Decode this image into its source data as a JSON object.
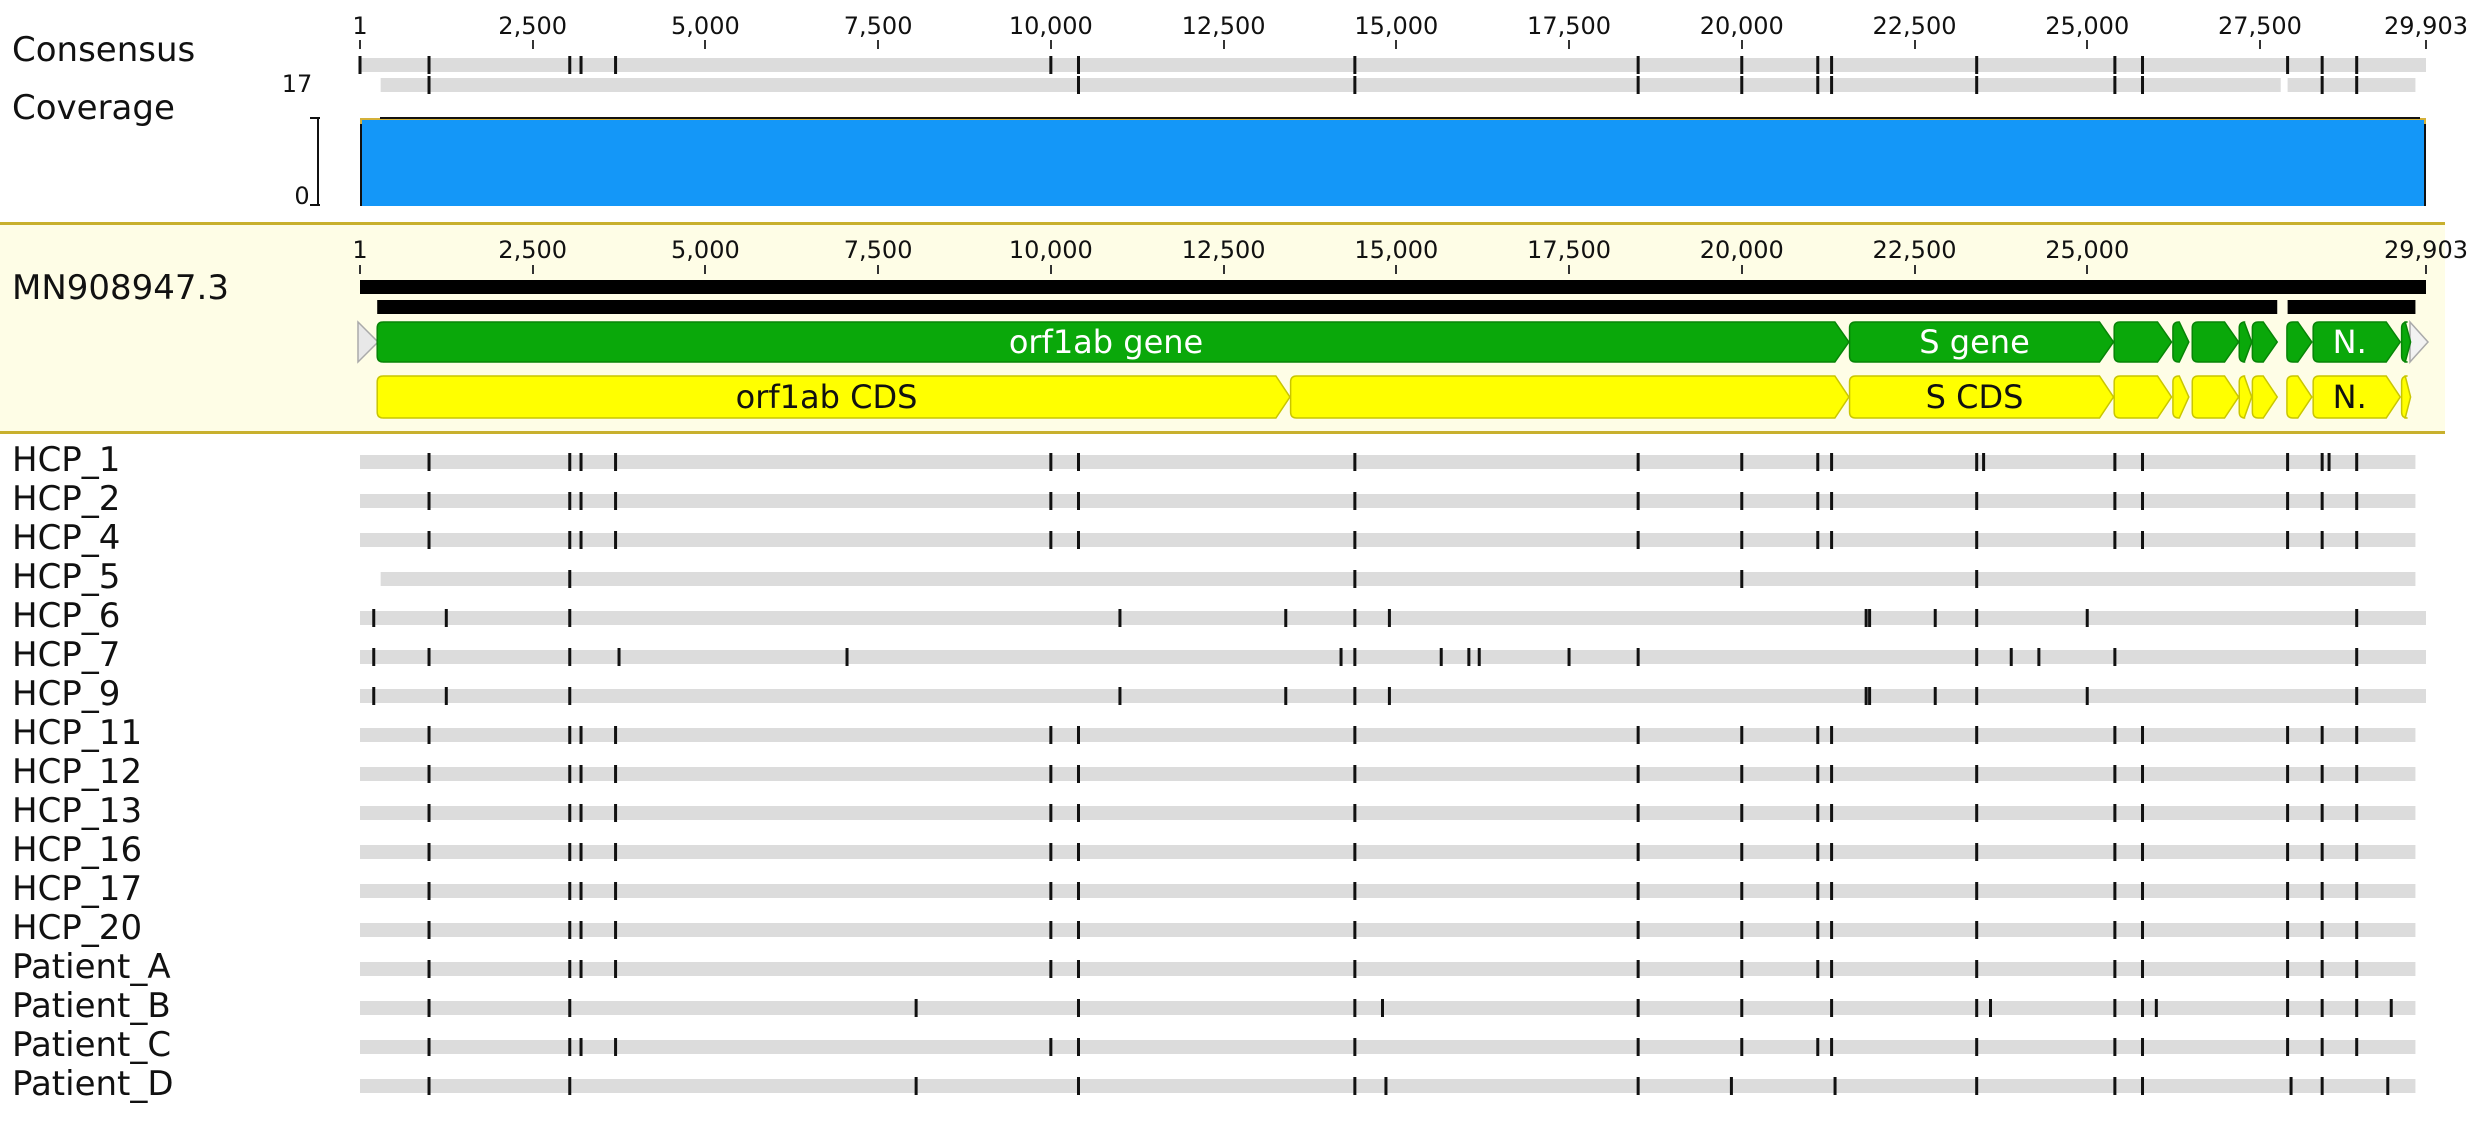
{
  "genome": {
    "min": 1,
    "max": 29903
  },
  "axis_ticks": [
    {
      "pos": 1,
      "label": "1"
    },
    {
      "pos": 2500,
      "label": "2,500"
    },
    {
      "pos": 5000,
      "label": "5,000"
    },
    {
      "pos": 7500,
      "label": "7,500"
    },
    {
      "pos": 10000,
      "label": "10,000"
    },
    {
      "pos": 12500,
      "label": "12,500"
    },
    {
      "pos": 15000,
      "label": "15,000"
    },
    {
      "pos": 17500,
      "label": "17,500"
    },
    {
      "pos": 20000,
      "label": "20,000"
    },
    {
      "pos": 22500,
      "label": "22,500"
    },
    {
      "pos": 25000,
      "label": "25,000"
    },
    {
      "pos": 27500,
      "label": "27,500"
    },
    {
      "pos": 29903,
      "label": "29,903"
    }
  ],
  "ref_ticks": [
    {
      "pos": 1,
      "label": "1"
    },
    {
      "pos": 2500,
      "label": "2,500"
    },
    {
      "pos": 5000,
      "label": "5,000"
    },
    {
      "pos": 7500,
      "label": "7,500"
    },
    {
      "pos": 10000,
      "label": "10,000"
    },
    {
      "pos": 12500,
      "label": "12,500"
    },
    {
      "pos": 15000,
      "label": "15,000"
    },
    {
      "pos": 17500,
      "label": "17,500"
    },
    {
      "pos": 20000,
      "label": "20,000"
    },
    {
      "pos": 22500,
      "label": "22,500"
    },
    {
      "pos": 25000,
      "label": "25,000"
    },
    {
      "pos": 29903,
      "label": "29,903"
    }
  ],
  "consensus": {
    "label": "Consensus",
    "variants": [
      1,
      1000,
      3037,
      3200,
      3700,
      10000,
      10400,
      14400,
      18500,
      20000,
      21100,
      21300,
      23400,
      25400,
      25800,
      27900,
      28400,
      28900
    ],
    "bar2": {
      "start": 300,
      "end": 29750,
      "gap_start": 27800,
      "gap_end": 27900
    },
    "bar2_variants": [
      1000,
      10400,
      14400,
      18500,
      20000,
      21100,
      21300,
      23400,
      25400,
      25800,
      28400,
      28900
    ]
  },
  "coverage": {
    "label": "Coverage",
    "max_label": "17",
    "min_label": "0",
    "color": "#1497f8",
    "edge_color": "#d4b13a"
  },
  "reference": {
    "label": "MN908947.3",
    "bar_black_1": {
      "start": 1,
      "end": 29903
    },
    "bar_black_2": {
      "start": 250,
      "end": 29750,
      "gap_start": 27750,
      "gap_end": 27900
    },
    "genes": [
      {
        "label": "orf1ab gene",
        "start": 250,
        "end": 21550
      },
      {
        "label": "S gene",
        "start": 21560,
        "end": 25380
      },
      {
        "label": "",
        "start": 25390,
        "end": 26220
      },
      {
        "label": "",
        "start": 26240,
        "end": 26470
      },
      {
        "label": "",
        "start": 26520,
        "end": 27190
      },
      {
        "label": "",
        "start": 27200,
        "end": 27380
      },
      {
        "label": "",
        "start": 27390,
        "end": 27750
      },
      {
        "label": "",
        "start": 27890,
        "end": 28250
      },
      {
        "label": "N.",
        "start": 28270,
        "end": 29530
      },
      {
        "label": "",
        "start": 29550,
        "end": 29680
      }
    ],
    "cds": [
      {
        "label": "orf1ab CDS",
        "start": 250,
        "end": 13460
      },
      {
        "label": "",
        "start": 13470,
        "end": 21550
      },
      {
        "label": "S CDS",
        "start": 21560,
        "end": 25380
      },
      {
        "label": "",
        "start": 25390,
        "end": 26220
      },
      {
        "label": "",
        "start": 26240,
        "end": 26470
      },
      {
        "label": "",
        "start": 26520,
        "end": 27190
      },
      {
        "label": "",
        "start": 27200,
        "end": 27380
      },
      {
        "label": "",
        "start": 27390,
        "end": 27750
      },
      {
        "label": "",
        "start": 27890,
        "end": 28250
      },
      {
        "label": "N.",
        "start": 28270,
        "end": 29530
      },
      {
        "label": "",
        "start": 29550,
        "end": 29680
      }
    ],
    "gene_color": "#0aa80a",
    "cds_color": "#ffff00"
  },
  "samples": [
    {
      "name": "HCP_1",
      "start": 1,
      "end": 29750,
      "variants": [
        1000,
        3037,
        3200,
        3700,
        10000,
        10400,
        14400,
        18500,
        20000,
        21100,
        21300,
        23400,
        23500,
        25400,
        25800,
        27900,
        28400,
        28500,
        28900
      ]
    },
    {
      "name": "HCP_2",
      "start": 1,
      "end": 29750,
      "variants": [
        1000,
        3037,
        3200,
        3700,
        10000,
        10400,
        14400,
        18500,
        20000,
        21100,
        21300,
        23400,
        25400,
        25800,
        27900,
        28400,
        28900
      ]
    },
    {
      "name": "HCP_4",
      "start": 1,
      "end": 29750,
      "variants": [
        1000,
        3037,
        3200,
        3700,
        10000,
        10400,
        14400,
        18500,
        20000,
        21100,
        21300,
        23400,
        25400,
        25800,
        27900,
        28400,
        28900
      ]
    },
    {
      "name": "HCP_5",
      "start": 300,
      "end": 29750,
      "variants": [
        3037,
        14400,
        20000,
        23400
      ]
    },
    {
      "name": "HCP_6",
      "start": 1,
      "end": 29903,
      "variants": [
        200,
        1250,
        3037,
        11000,
        13400,
        14400,
        14900,
        21800,
        21850,
        22800,
        23400,
        25000,
        28900
      ]
    },
    {
      "name": "HCP_7",
      "start": 1,
      "end": 29903,
      "variants": [
        200,
        1000,
        3037,
        3750,
        7050,
        14200,
        14400,
        15650,
        16050,
        16200,
        17500,
        18500,
        23400,
        23900,
        24300,
        25400,
        28900
      ]
    },
    {
      "name": "HCP_9",
      "start": 1,
      "end": 29903,
      "variants": [
        200,
        1250,
        3037,
        11000,
        13400,
        14400,
        14900,
        21800,
        21850,
        22800,
        23400,
        25000,
        28900
      ]
    },
    {
      "name": "HCP_11",
      "start": 1,
      "end": 29750,
      "variants": [
        1000,
        3037,
        3200,
        3700,
        10000,
        10400,
        14400,
        18500,
        20000,
        21100,
        21300,
        23400,
        25400,
        25800,
        27900,
        28400,
        28900
      ]
    },
    {
      "name": "HCP_12",
      "start": 1,
      "end": 29750,
      "variants": [
        1000,
        3037,
        3200,
        3700,
        10000,
        10400,
        14400,
        18500,
        20000,
        21100,
        21300,
        23400,
        25400,
        25800,
        27900,
        28400,
        28900
      ]
    },
    {
      "name": "HCP_13",
      "start": 1,
      "end": 29750,
      "variants": [
        1000,
        3037,
        3200,
        3700,
        10000,
        10400,
        14400,
        18500,
        20000,
        21100,
        21300,
        23400,
        25400,
        25800,
        27900,
        28400,
        28900
      ]
    },
    {
      "name": "HCP_16",
      "start": 1,
      "end": 29750,
      "variants": [
        1000,
        3037,
        3200,
        3700,
        10000,
        10400,
        14400,
        18500,
        20000,
        21100,
        21300,
        23400,
        25400,
        25800,
        27900,
        28400,
        28900
      ]
    },
    {
      "name": "HCP_17",
      "start": 1,
      "end": 29750,
      "variants": [
        1000,
        3037,
        3200,
        3700,
        10000,
        10400,
        14400,
        18500,
        20000,
        21100,
        21300,
        23400,
        25400,
        25800,
        27900,
        28400,
        28900
      ]
    },
    {
      "name": "HCP_20",
      "start": 1,
      "end": 29750,
      "variants": [
        1000,
        3037,
        3200,
        3700,
        10000,
        10400,
        14400,
        18500,
        20000,
        21100,
        21300,
        23400,
        25400,
        25800,
        27900,
        28400,
        28900
      ]
    },
    {
      "name": "Patient_A",
      "start": 1,
      "end": 29750,
      "variants": [
        1000,
        3037,
        3200,
        3700,
        10000,
        10400,
        14400,
        18500,
        20000,
        21100,
        21300,
        23400,
        25400,
        25800,
        27900,
        28400,
        28900
      ]
    },
    {
      "name": "Patient_B",
      "start": 1,
      "end": 29750,
      "variants": [
        1000,
        3037,
        8050,
        10400,
        14400,
        14800,
        18500,
        20000,
        21300,
        23400,
        23600,
        25400,
        25800,
        26000,
        27900,
        28400,
        28900,
        29400
      ]
    },
    {
      "name": "Patient_C",
      "start": 1,
      "end": 29750,
      "variants": [
        1000,
        3037,
        3200,
        3700,
        10000,
        10400,
        14400,
        18500,
        20000,
        21100,
        21300,
        23400,
        25400,
        25800,
        27900,
        28400,
        28900
      ]
    },
    {
      "name": "Patient_D",
      "start": 1,
      "end": 29750,
      "variants": [
        1000,
        3037,
        8050,
        10400,
        14400,
        14850,
        18500,
        19850,
        21350,
        23400,
        25400,
        25800,
        27950,
        28400,
        29350
      ]
    }
  ]
}
